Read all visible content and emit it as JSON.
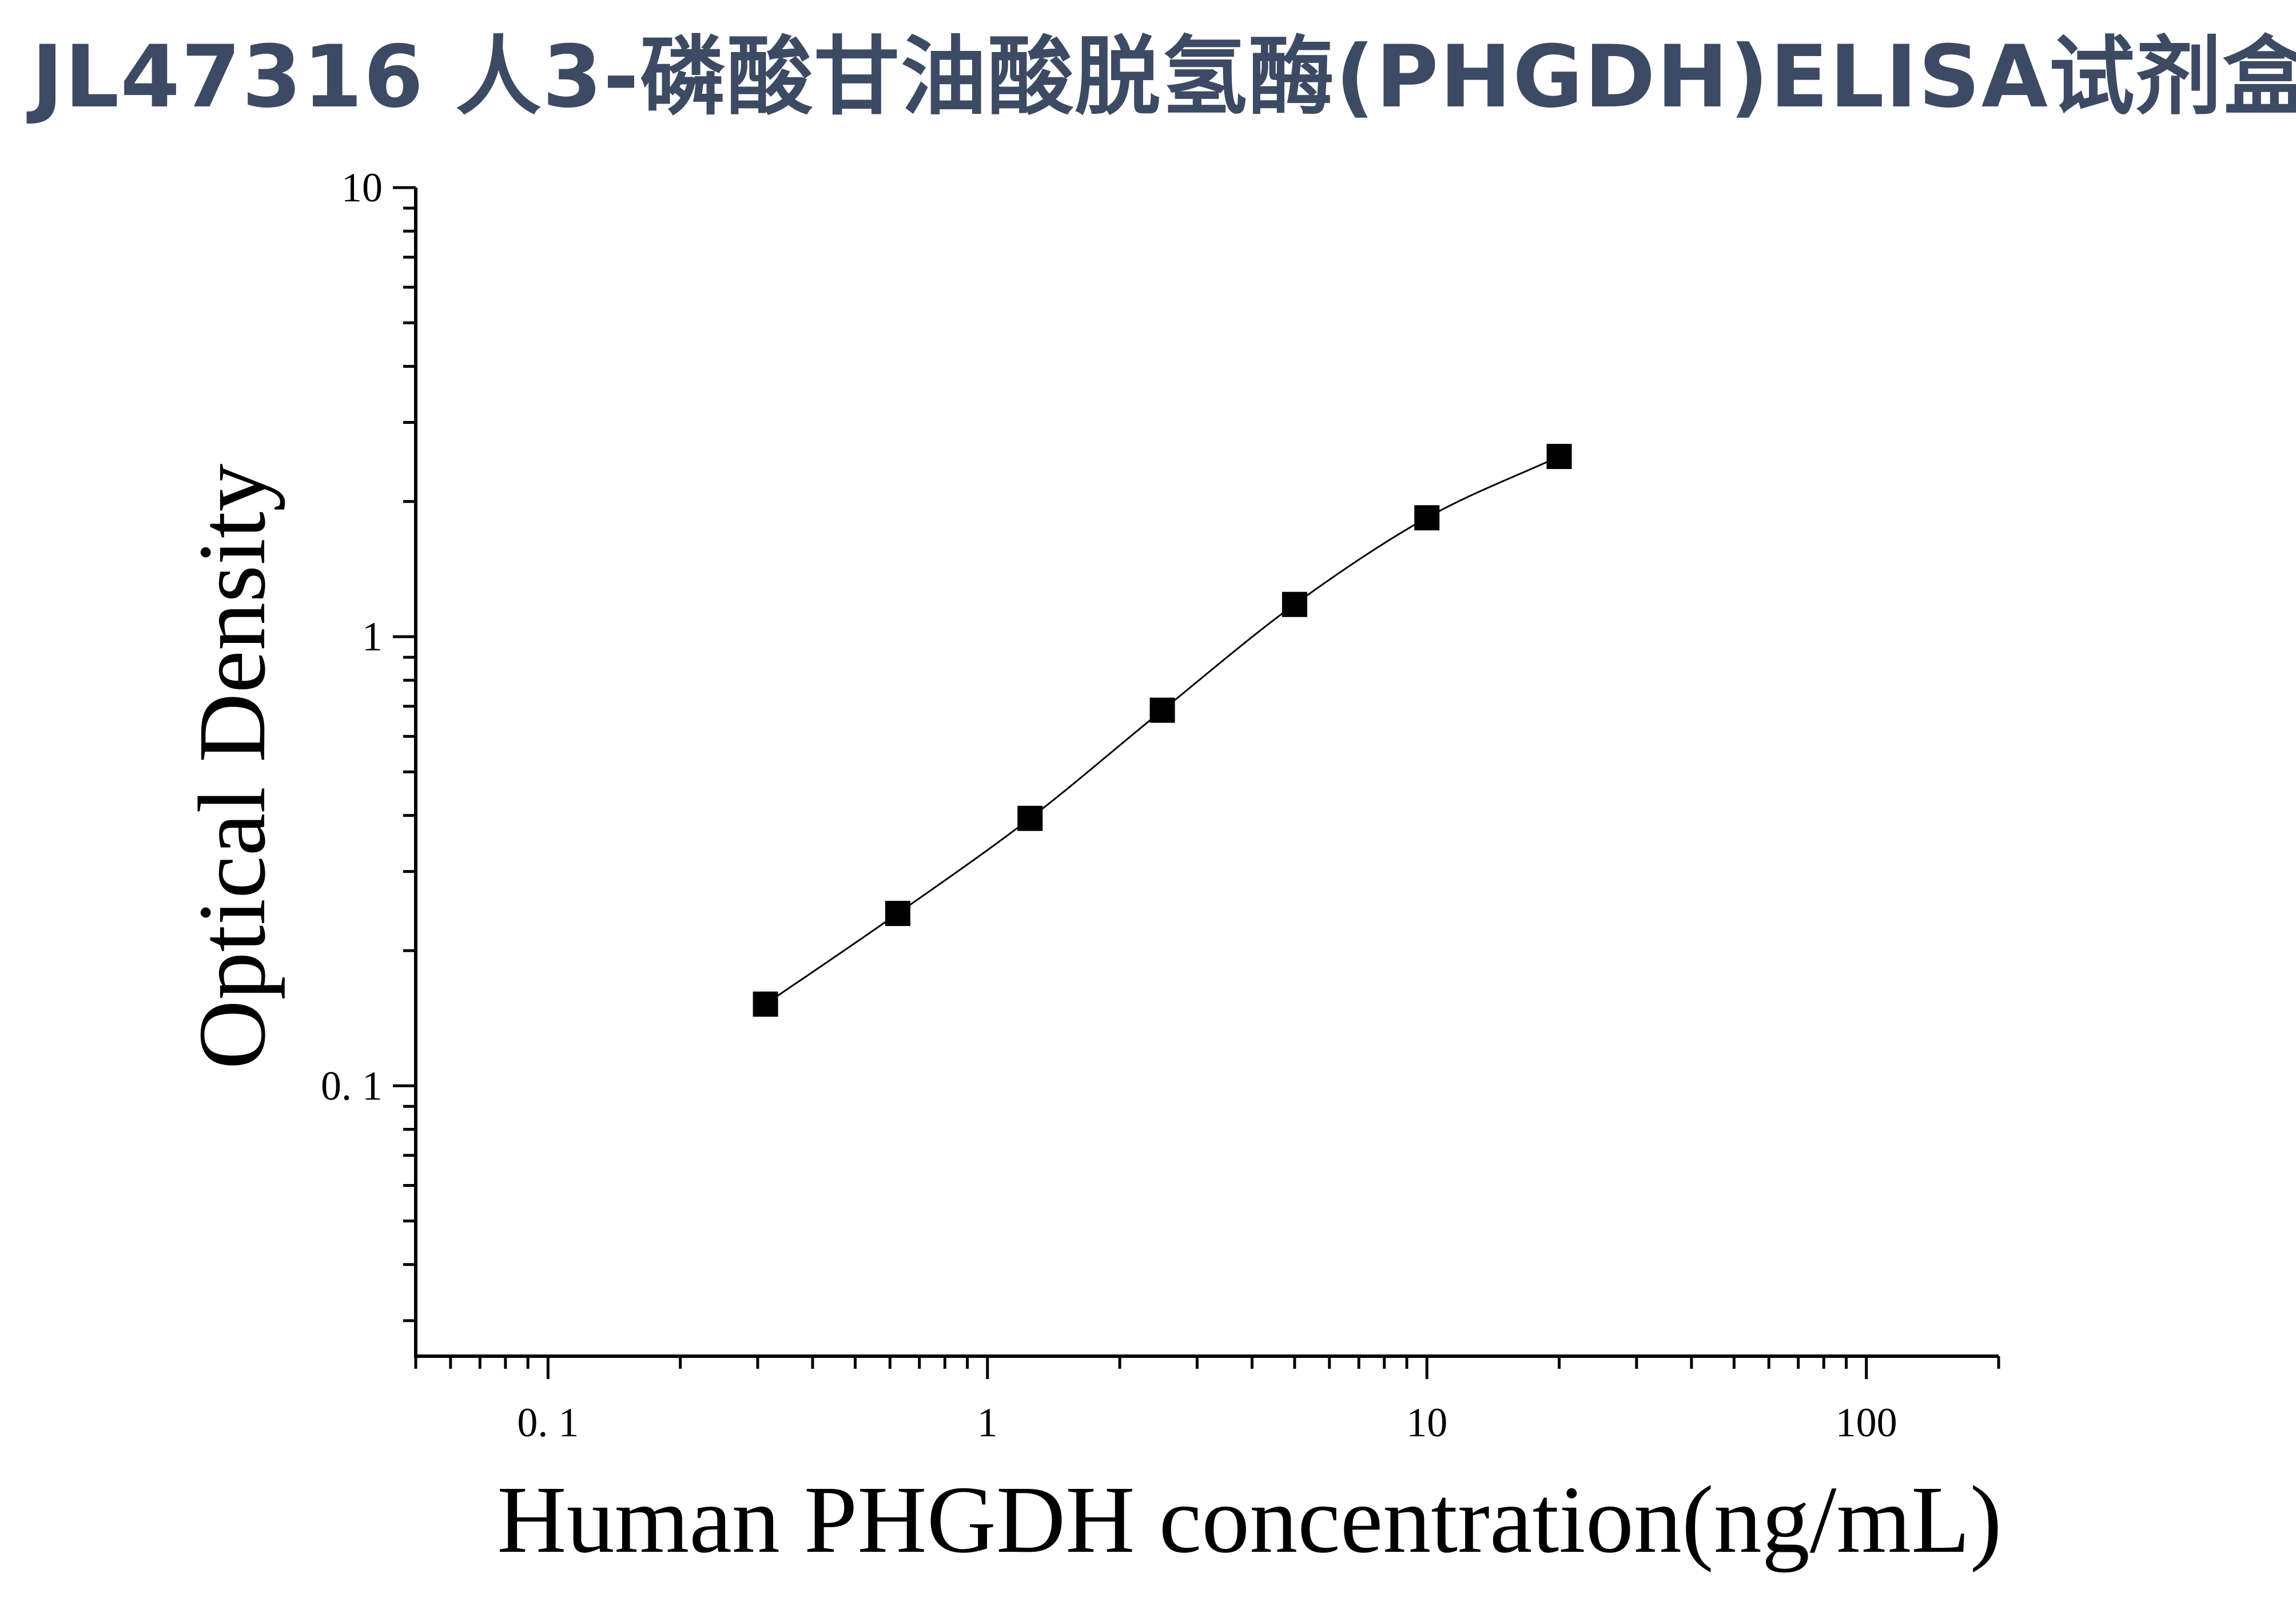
{
  "page": {
    "title": "JL47316 人3-磷酸甘油酸脱氢酶(PHGDH)ELISA试剂盒"
  },
  "chart_data": {
    "type": "scatter",
    "title": "",
    "xlabel": "Human PHGDH concentration(ng/mL)",
    "ylabel": "Optical Density",
    "x_scale": "log",
    "y_scale": "log",
    "xlim": [
      0.05,
      200
    ],
    "ylim": [
      0.025,
      10
    ],
    "x_ticks": [
      {
        "value": 0.1,
        "label": "0. 1"
      },
      {
        "value": 1,
        "label": "1"
      },
      {
        "value": 10,
        "label": "10"
      },
      {
        "value": 100,
        "label": "100"
      }
    ],
    "y_ticks": [
      {
        "value": 0.1,
        "label": "0. 1"
      },
      {
        "value": 1,
        "label": "1"
      },
      {
        "value": 10,
        "label": "10"
      }
    ],
    "grid": false,
    "legend": "none",
    "series": [
      {
        "marker": "square",
        "color": "#000000",
        "x": [
          0.3125,
          0.625,
          1.25,
          2.5,
          5,
          10,
          20
        ],
        "y": [
          0.152,
          0.242,
          0.394,
          0.686,
          1.18,
          1.84,
          2.52
        ]
      }
    ],
    "fit_curve": {
      "style": "line",
      "color": "#000000"
    }
  }
}
